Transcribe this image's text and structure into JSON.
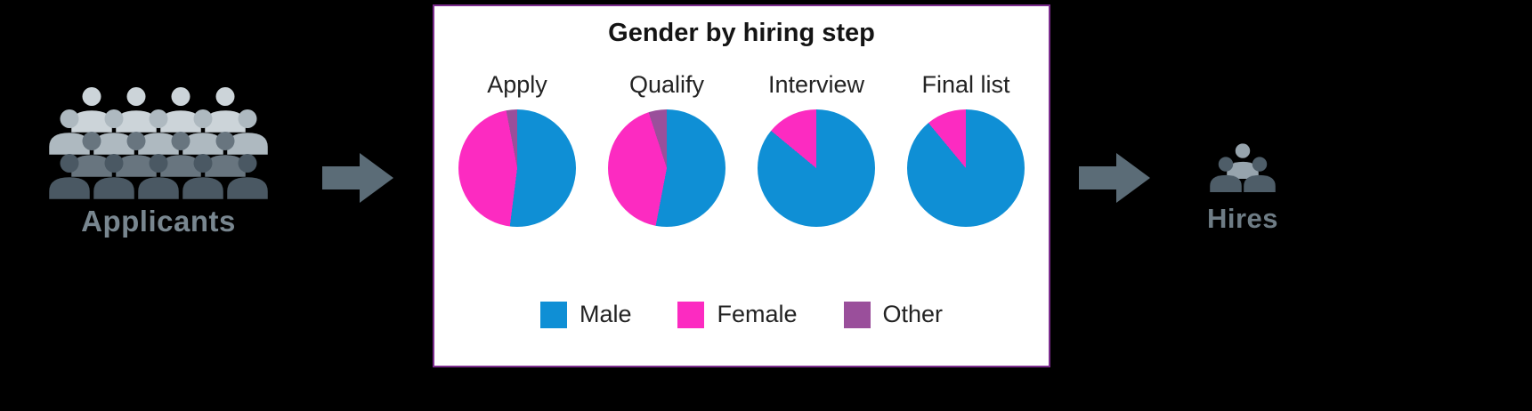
{
  "page": {
    "background": "#000000"
  },
  "applicants": {
    "label": "Applicants",
    "rows": [
      {
        "color": "#ccd4d9",
        "count": 4
      },
      {
        "color": "#aeb9c0",
        "count": 5
      },
      {
        "color": "#68757f",
        "count": 4
      },
      {
        "color": "#4a5863",
        "count": 5
      }
    ]
  },
  "hires": {
    "label": "Hires",
    "rows": [
      {
        "color": "#97a4ad",
        "count": 1
      },
      {
        "color": "#4e5d68",
        "count": 2
      }
    ]
  },
  "arrow_color": "#5b6c77",
  "panel": {
    "title": "Gender by hiring step",
    "border_color": "#7c2d8e"
  },
  "chart_data": {
    "type": "pie",
    "title": "Gender by hiring step",
    "legend": [
      "Male",
      "Female",
      "Other"
    ],
    "legend_position": "bottom",
    "colors": {
      "Male": "#0f8fd5",
      "Female": "#fc2bc1",
      "Other": "#9a4f9b"
    },
    "charts": [
      {
        "label": "Apply",
        "slices": [
          {
            "name": "Male",
            "value": 52
          },
          {
            "name": "Female",
            "value": 45
          },
          {
            "name": "Other",
            "value": 3
          }
        ]
      },
      {
        "label": "Qualify",
        "slices": [
          {
            "name": "Male",
            "value": 53
          },
          {
            "name": "Female",
            "value": 42
          },
          {
            "name": "Other",
            "value": 5
          }
        ]
      },
      {
        "label": "Interview",
        "slices": [
          {
            "name": "Male",
            "value": 86
          },
          {
            "name": "Female",
            "value": 14
          },
          {
            "name": "Other",
            "value": 0
          }
        ]
      },
      {
        "label": "Final list",
        "slices": [
          {
            "name": "Male",
            "value": 89
          },
          {
            "name": "Female",
            "value": 11
          },
          {
            "name": "Other",
            "value": 0
          }
        ]
      }
    ]
  }
}
